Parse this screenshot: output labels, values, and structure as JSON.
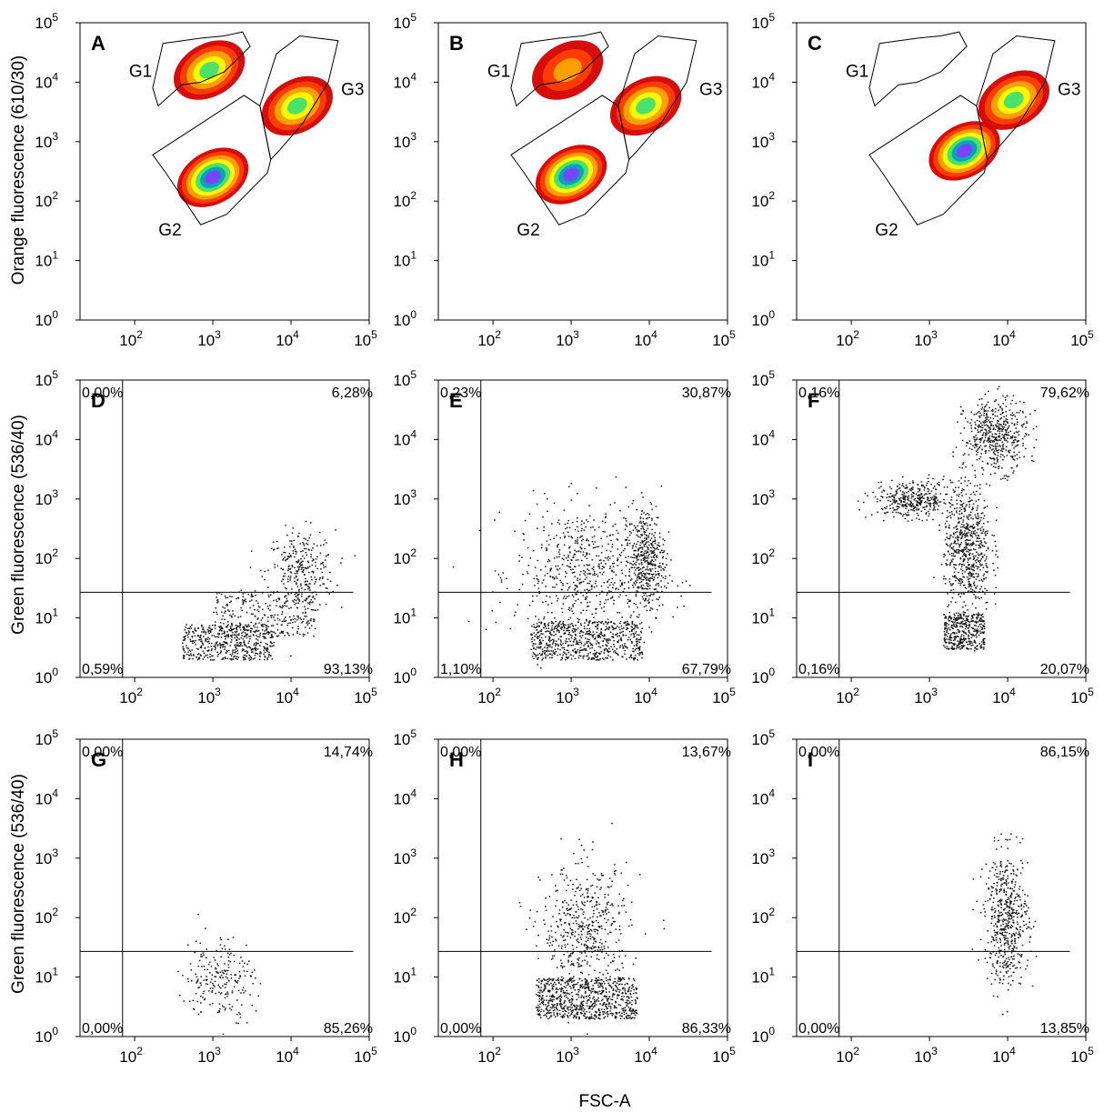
{
  "figure": {
    "x_title": "FSC-A",
    "row_titles": [
      "Orange fluorescence (610/30)",
      "Green fluorescence (536/40)",
      "Green fluorescence (536/40)"
    ]
  },
  "chart_data": [
    {
      "panel": "A",
      "type": "scatter",
      "style": "density",
      "xlabel": "",
      "ylabel": "Orange fluorescence (610/30)",
      "xscale": "log",
      "yscale": "log",
      "xlim": [
        20,
        100000
      ],
      "ylim": [
        1,
        100000
      ],
      "x_ticks": [
        "10^2",
        "10^3",
        "10^4",
        "10^5"
      ],
      "y_ticks": [
        "10^0",
        "10^1",
        "10^2",
        "10^3",
        "10^4",
        "10^5"
      ],
      "gates": [
        {
          "name": "G1",
          "polygon": [
            [
              230,
              45000
            ],
            [
              700,
              55000
            ],
            [
              1400,
              60000
            ],
            [
              2400,
              70000
            ],
            [
              3000,
              40000
            ],
            [
              1400,
              15000
            ],
            [
              700,
              10000
            ],
            [
              400,
              9000
            ],
            [
              200,
              4000
            ],
            [
              170,
              8000
            ]
          ]
        },
        {
          "name": "G2",
          "polygon": [
            [
              170,
              600
            ],
            [
              700,
              2000
            ],
            [
              2500,
              6000
            ],
            [
              4000,
              4000
            ],
            [
              5500,
              500
            ],
            [
              5000,
              300
            ],
            [
              1500,
              60
            ],
            [
              700,
              40
            ],
            [
              250,
              300
            ]
          ]
        },
        {
          "name": "G3",
          "polygon": [
            [
              4000,
              4000
            ],
            [
              6500,
              30000
            ],
            [
              13000,
              60000
            ],
            [
              40000,
              50000
            ],
            [
              30000,
              10000
            ],
            [
              14000,
              2000
            ],
            [
              7000,
              700
            ],
            [
              5500,
              500
            ]
          ]
        }
      ],
      "populations": [
        {
          "gate": "G1",
          "center": [
            900,
            16000
          ],
          "peak": "medium"
        },
        {
          "gate": "G2",
          "center": [
            1000,
            250
          ],
          "peak": "high"
        },
        {
          "gate": "G3",
          "center": [
            12000,
            4000
          ],
          "peak": "medium"
        }
      ],
      "colors": [
        "#d40000",
        "#ff4000",
        "#ffa500",
        "#ffff00",
        "#40e070",
        "#00a0c0",
        "#8040ff"
      ]
    },
    {
      "panel": "B",
      "type": "scatter",
      "style": "density",
      "xlabel": "",
      "ylabel": "",
      "xscale": "log",
      "yscale": "log",
      "xlim": [
        20,
        100000
      ],
      "ylim": [
        1,
        100000
      ],
      "x_ticks": [
        "10^2",
        "10^3",
        "10^4",
        "10^5"
      ],
      "y_ticks": [
        "10^0",
        "10^1",
        "10^2",
        "10^3",
        "10^4",
        "10^5"
      ],
      "gates": [
        {
          "name": "G1",
          "polygon": [
            [
              230,
              45000
            ],
            [
              700,
              55000
            ],
            [
              1400,
              60000
            ],
            [
              2400,
              70000
            ],
            [
              3000,
              40000
            ],
            [
              1400,
              15000
            ],
            [
              700,
              10000
            ],
            [
              400,
              9000
            ],
            [
              200,
              4000
            ],
            [
              170,
              8000
            ]
          ]
        },
        {
          "name": "G2",
          "polygon": [
            [
              170,
              600
            ],
            [
              700,
              2000
            ],
            [
              2500,
              6000
            ],
            [
              4000,
              4000
            ],
            [
              5500,
              500
            ],
            [
              5000,
              300
            ],
            [
              1500,
              60
            ],
            [
              700,
              40
            ],
            [
              250,
              300
            ]
          ]
        },
        {
          "name": "G3",
          "polygon": [
            [
              4000,
              4000
            ],
            [
              6500,
              30000
            ],
            [
              13000,
              60000
            ],
            [
              40000,
              50000
            ],
            [
              30000,
              10000
            ],
            [
              14000,
              2000
            ],
            [
              7000,
              700
            ],
            [
              5500,
              500
            ]
          ]
        }
      ],
      "populations": [
        {
          "gate": "G1",
          "center": [
            900,
            16000
          ],
          "peak": "low"
        },
        {
          "gate": "G2",
          "center": [
            1000,
            280
          ],
          "peak": "high"
        },
        {
          "gate": "G3",
          "center": [
            9000,
            4000
          ],
          "peak": "medium"
        }
      ],
      "colors": [
        "#d40000",
        "#ff4000",
        "#ffa500",
        "#ffff00",
        "#40e070",
        "#00a0c0",
        "#8040ff"
      ]
    },
    {
      "panel": "C",
      "type": "scatter",
      "style": "density",
      "xlabel": "",
      "ylabel": "",
      "xscale": "log",
      "yscale": "log",
      "xlim": [
        20,
        100000
      ],
      "ylim": [
        1,
        100000
      ],
      "x_ticks": [
        "10^2",
        "10^3",
        "10^4",
        "10^5"
      ],
      "y_ticks": [
        "10^0",
        "10^1",
        "10^2",
        "10^3",
        "10^4",
        "10^5"
      ],
      "gates": [
        {
          "name": "G1",
          "polygon": [
            [
              230,
              45000
            ],
            [
              700,
              55000
            ],
            [
              1400,
              60000
            ],
            [
              2400,
              70000
            ],
            [
              3000,
              40000
            ],
            [
              1400,
              15000
            ],
            [
              700,
              10000
            ],
            [
              400,
              9000
            ],
            [
              200,
              4000
            ],
            [
              170,
              8000
            ]
          ]
        },
        {
          "name": "G2",
          "polygon": [
            [
              170,
              600
            ],
            [
              700,
              2000
            ],
            [
              2500,
              6000
            ],
            [
              4000,
              4000
            ],
            [
              5500,
              500
            ],
            [
              5000,
              300
            ],
            [
              1500,
              60
            ],
            [
              700,
              40
            ],
            [
              250,
              300
            ]
          ]
        },
        {
          "name": "G3",
          "polygon": [
            [
              4000,
              4000
            ],
            [
              6500,
              30000
            ],
            [
              13000,
              60000
            ],
            [
              40000,
              50000
            ],
            [
              30000,
              10000
            ],
            [
              14000,
              2000
            ],
            [
              7000,
              700
            ],
            [
              5500,
              500
            ]
          ]
        }
      ],
      "populations": [
        {
          "gate": "G2",
          "center": [
            2800,
            700
          ],
          "peak": "high"
        },
        {
          "gate": "G3",
          "center": [
            12000,
            5000
          ],
          "peak": "medium"
        }
      ],
      "colors": [
        "#d40000",
        "#ff4000",
        "#ffa500",
        "#ffff00",
        "#40e070",
        "#00a0c0",
        "#8040ff"
      ]
    },
    {
      "panel": "D",
      "type": "scatter",
      "style": "dots",
      "xlabel": "",
      "ylabel": "Green fluorescence (536/40)",
      "xscale": "log",
      "yscale": "log",
      "xlim": [
        20,
        100000
      ],
      "ylim": [
        1,
        100000
      ],
      "x_ticks": [
        "10^2",
        "10^3",
        "10^4",
        "10^5"
      ],
      "y_ticks": [
        "10^0",
        "10^1",
        "10^2",
        "10^3",
        "10^4",
        "10^5"
      ],
      "quadrant": {
        "x": 70,
        "y": 27
      },
      "percent": {
        "upper_left": "0,00%",
        "upper_right": "6,28%",
        "lower_left": "0,59%",
        "lower_right": "93,13%"
      },
      "clusters": [
        {
          "x": [
            400,
            6000
          ],
          "y": [
            2,
            8
          ],
          "n": 500,
          "shape": "uniform"
        },
        {
          "x": [
            1000,
            20000
          ],
          "y": [
            5,
            30
          ],
          "n": 280,
          "shape": "uniform"
        },
        {
          "x_center": 13000,
          "y_center": 60,
          "x_spread": 0.22,
          "y_spread": 0.35,
          "n": 300,
          "shape": "gauss"
        }
      ]
    },
    {
      "panel": "E",
      "type": "scatter",
      "style": "dots",
      "xlabel": "",
      "ylabel": "",
      "xscale": "log",
      "yscale": "log",
      "xlim": [
        20,
        100000
      ],
      "ylim": [
        1,
        100000
      ],
      "x_ticks": [
        "10^2",
        "10^3",
        "10^4",
        "10^5"
      ],
      "y_ticks": [
        "10^0",
        "10^1",
        "10^2",
        "10^3",
        "10^4",
        "10^5"
      ],
      "quadrant": {
        "x": 70,
        "y": 27
      },
      "percent": {
        "upper_left": "0,23%",
        "upper_right": "30,87%",
        "lower_left": "1,10%",
        "lower_right": "67,79%"
      },
      "clusters": [
        {
          "x": [
            300,
            8000
          ],
          "y": [
            2,
            9
          ],
          "n": 650,
          "shape": "uniform"
        },
        {
          "x_center": 1500,
          "y_center": 60,
          "x_spread": 0.45,
          "y_spread": 0.55,
          "n": 650,
          "shape": "gauss"
        },
        {
          "x_center": 9000,
          "y_center": 100,
          "x_spread": 0.12,
          "y_spread": 0.45,
          "n": 420,
          "shape": "gauss"
        }
      ]
    },
    {
      "panel": "F",
      "type": "scatter",
      "style": "dots",
      "xlabel": "",
      "ylabel": "",
      "xscale": "log",
      "yscale": "log",
      "xlim": [
        20,
        100000
      ],
      "ylim": [
        1,
        100000
      ],
      "x_ticks": [
        "10^2",
        "10^3",
        "10^4",
        "10^5"
      ],
      "y_ticks": [
        "10^0",
        "10^1",
        "10^2",
        "10^3",
        "10^4",
        "10^5"
      ],
      "quadrant": {
        "x": 70,
        "y": 27
      },
      "percent": {
        "upper_left": "0,16%",
        "upper_right": "79,62%",
        "lower_left": "0,16%",
        "lower_right": "20,07%"
      },
      "clusters": [
        {
          "x": [
            1500,
            5000
          ],
          "y": [
            3,
            12
          ],
          "n": 380,
          "shape": "uniform"
        },
        {
          "x_center": 3000,
          "y_center": 150,
          "x_spread": 0.15,
          "y_spread": 0.55,
          "n": 650,
          "shape": "gauss"
        },
        {
          "x_center": 600,
          "y_center": 1000,
          "x_spread": 0.25,
          "y_spread": 0.15,
          "n": 380,
          "shape": "gauss"
        },
        {
          "x_center": 7000,
          "y_center": 12000,
          "x_spread": 0.2,
          "y_spread": 0.3,
          "n": 500,
          "shape": "gauss"
        }
      ]
    },
    {
      "panel": "G",
      "type": "scatter",
      "style": "dots",
      "xlabel": "",
      "ylabel": "Green fluorescence (536/40)",
      "xscale": "log",
      "yscale": "log",
      "xlim": [
        20,
        100000
      ],
      "ylim": [
        1,
        100000
      ],
      "x_ticks": [
        "10^2",
        "10^3",
        "10^4",
        "10^5"
      ],
      "y_ticks": [
        "10^0",
        "10^1",
        "10^2",
        "10^3",
        "10^4",
        "10^5"
      ],
      "quadrant": {
        "x": 70,
        "y": 27
      },
      "percent": {
        "upper_left": "0,00%",
        "upper_right": "14,74%",
        "lower_left": "0,00%",
        "lower_right": "85,26%"
      },
      "clusters": [
        {
          "x_center": 1200,
          "y_center": 10,
          "x_spread": 0.22,
          "y_spread": 0.35,
          "n": 220,
          "shape": "gauss"
        }
      ]
    },
    {
      "panel": "H",
      "type": "scatter",
      "style": "dots",
      "xlabel": "",
      "ylabel": "",
      "xscale": "log",
      "yscale": "log",
      "xlim": [
        20,
        100000
      ],
      "ylim": [
        1,
        100000
      ],
      "x_ticks": [
        "10^2",
        "10^3",
        "10^4",
        "10^5"
      ],
      "y_ticks": [
        "10^0",
        "10^1",
        "10^2",
        "10^3",
        "10^4",
        "10^5"
      ],
      "quadrant": {
        "x": 70,
        "y": 27
      },
      "percent": {
        "upper_left": "0,00%",
        "upper_right": "13,67%",
        "lower_left": "0,00%",
        "lower_right": "86,33%"
      },
      "clusters": [
        {
          "x": [
            350,
            7000
          ],
          "y": [
            2,
            10
          ],
          "n": 750,
          "shape": "uniform"
        },
        {
          "x_center": 1500,
          "y_center": 60,
          "x_spread": 0.28,
          "y_spread": 0.55,
          "n": 520,
          "shape": "gauss"
        }
      ]
    },
    {
      "panel": "I",
      "type": "scatter",
      "style": "dots",
      "xlabel": "",
      "ylabel": "",
      "xscale": "log",
      "yscale": "log",
      "xlim": [
        20,
        100000
      ],
      "ylim": [
        1,
        100000
      ],
      "x_ticks": [
        "10^2",
        "10^3",
        "10^4",
        "10^5"
      ],
      "y_ticks": [
        "10^0",
        "10^1",
        "10^2",
        "10^3",
        "10^4",
        "10^5"
      ],
      "quadrant": {
        "x": 70,
        "y": 27
      },
      "percent": {
        "upper_left": "0,00%",
        "upper_right": "86,15%",
        "lower_left": "0,00%",
        "lower_right": "13,85%"
      },
      "clusters": [
        {
          "x_center": 9500,
          "y_center": 100,
          "x_spread": 0.14,
          "y_spread": 0.55,
          "n": 550,
          "shape": "gauss"
        }
      ]
    }
  ]
}
